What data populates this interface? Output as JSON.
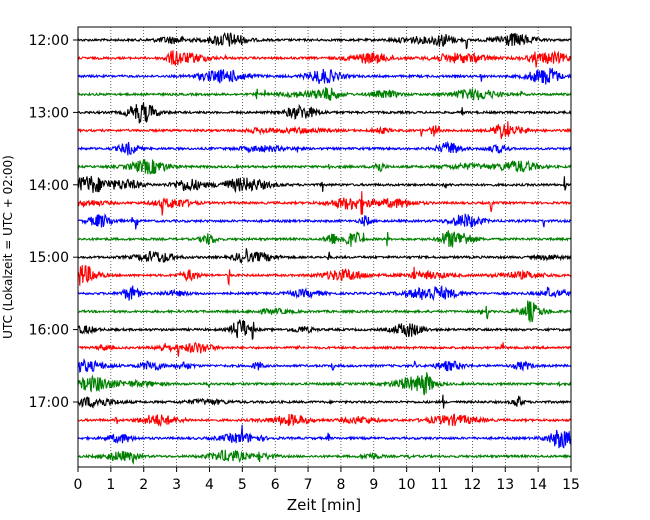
{
  "chart_data": {
    "type": "line",
    "title": "",
    "xlabel": "Zeit  [min]",
    "ylabel": "UTC (Lokalzeit = UTC + 02:00)",
    "xlim": [
      0,
      15
    ],
    "x_ticks": [
      "0",
      "1",
      "2",
      "3",
      "4",
      "5",
      "6",
      "7",
      "8",
      "9",
      "10",
      "11",
      "12",
      "13",
      "14",
      "15"
    ],
    "y_tick_labels": [
      "12:00",
      "13:00",
      "14:00",
      "15:00",
      "16:00",
      "17:00"
    ],
    "grid": "vertical-dotted",
    "trace_minutes": 15,
    "colors": {
      "black": "#000000",
      "red": "#ff0000",
      "blue": "#0000ff",
      "green": "#008000"
    },
    "rows": [
      {
        "start": "12:00",
        "color": "#000000"
      },
      {
        "start": "12:15",
        "color": "#ff0000"
      },
      {
        "start": "12:30",
        "color": "#0000ff"
      },
      {
        "start": "12:45",
        "color": "#008000"
      },
      {
        "start": "13:00",
        "color": "#000000"
      },
      {
        "start": "13:15",
        "color": "#ff0000"
      },
      {
        "start": "13:30",
        "color": "#0000ff"
      },
      {
        "start": "13:45",
        "color": "#008000"
      },
      {
        "start": "14:00",
        "color": "#000000"
      },
      {
        "start": "14:15",
        "color": "#ff0000"
      },
      {
        "start": "14:30",
        "color": "#0000ff"
      },
      {
        "start": "14:45",
        "color": "#008000"
      },
      {
        "start": "15:00",
        "color": "#000000"
      },
      {
        "start": "15:15",
        "color": "#ff0000"
      },
      {
        "start": "15:30",
        "color": "#0000ff"
      },
      {
        "start": "15:45",
        "color": "#008000"
      },
      {
        "start": "16:00",
        "color": "#000000"
      },
      {
        "start": "16:15",
        "color": "#ff0000"
      },
      {
        "start": "16:30",
        "color": "#0000ff"
      },
      {
        "start": "16:45",
        "color": "#008000"
      },
      {
        "start": "17:00",
        "color": "#000000"
      },
      {
        "start": "17:15",
        "color": "#ff0000"
      },
      {
        "start": "17:30",
        "color": "#0000ff"
      },
      {
        "start": "17:45",
        "color": "#008000"
      }
    ]
  }
}
